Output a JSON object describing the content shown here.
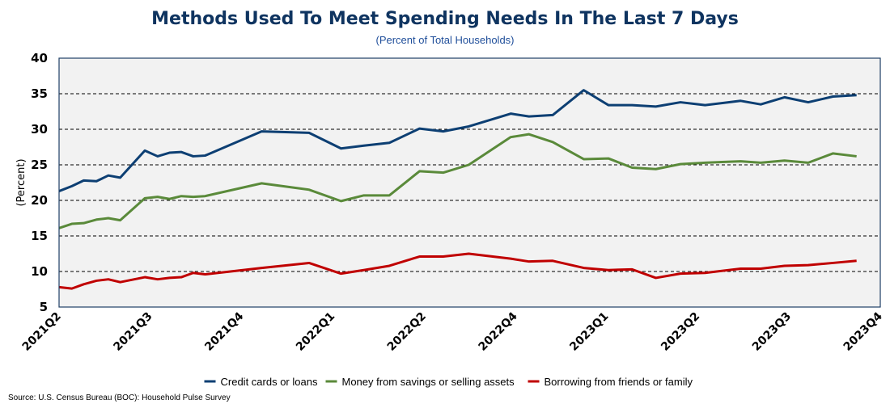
{
  "chart_data": {
    "type": "line",
    "title": "Methods Used To Meet Spending Needs In The Last 7 Days",
    "subtitle": "(Percent of Total Households)",
    "xlabel": "",
    "ylabel": "(Percent)",
    "ylim": [
      5,
      40
    ],
    "yticks": [
      5,
      10,
      15,
      20,
      25,
      30,
      35,
      40
    ],
    "xlim": [
      0,
      9
    ],
    "xtick_labels": [
      "2021Q2",
      "2021Q3",
      "2021Q4",
      "2022Q1",
      "2022Q2",
      "2022Q4",
      "2023Q1",
      "2023Q2",
      "2023Q3",
      "2023Q4"
    ],
    "grid": "horizontal dashed",
    "legend_position": "bottom",
    "x": [
      0.0,
      0.14,
      0.27,
      0.41,
      0.54,
      0.67,
      0.94,
      1.08,
      1.21,
      1.34,
      1.47,
      1.6,
      2.22,
      2.74,
      3.09,
      3.34,
      3.62,
      3.95,
      4.21,
      4.49,
      4.95,
      5.15,
      5.41,
      5.75,
      6.02,
      6.28,
      6.54,
      6.81,
      7.08,
      7.47,
      7.69,
      7.95,
      8.21,
      8.48,
      8.74
    ],
    "series": [
      {
        "name": "Credit cards or loans",
        "color": "#0d3f73",
        "values": [
          21.3,
          22.0,
          22.8,
          22.7,
          23.5,
          23.2,
          27.0,
          26.2,
          26.7,
          26.8,
          26.2,
          26.3,
          29.7,
          29.5,
          27.3,
          27.7,
          28.1,
          30.1,
          29.7,
          30.4,
          32.2,
          31.8,
          32.0,
          35.5,
          33.4,
          33.4,
          33.2,
          33.8,
          33.4,
          34.0,
          33.5,
          34.5,
          33.8,
          34.6,
          34.8
        ]
      },
      {
        "name": "Money from savings or selling assets",
        "color": "#5a8a3a",
        "values": [
          16.1,
          16.7,
          16.8,
          17.3,
          17.5,
          17.2,
          20.3,
          20.5,
          20.2,
          20.6,
          20.5,
          20.6,
          22.4,
          21.5,
          19.9,
          20.7,
          20.7,
          24.1,
          23.9,
          25.0,
          28.9,
          29.3,
          28.2,
          25.8,
          25.9,
          24.6,
          24.4,
          25.1,
          25.3,
          25.5,
          25.3,
          25.6,
          25.3,
          26.6,
          26.2
        ]
      },
      {
        "name": "Borrowing from friends or family",
        "color": "#c00000",
        "values": [
          7.8,
          7.6,
          8.2,
          8.7,
          8.9,
          8.5,
          9.2,
          8.9,
          9.1,
          9.2,
          9.8,
          9.6,
          10.5,
          11.2,
          9.7,
          10.2,
          10.8,
          12.1,
          12.1,
          12.5,
          11.8,
          11.4,
          11.5,
          10.5,
          10.2,
          10.3,
          9.1,
          9.7,
          9.8,
          10.4,
          10.4,
          10.8,
          10.9,
          11.2,
          11.5
        ]
      }
    ],
    "source": "Source: U.S. Census Bureau (BOC): Household Pulse Survey"
  }
}
